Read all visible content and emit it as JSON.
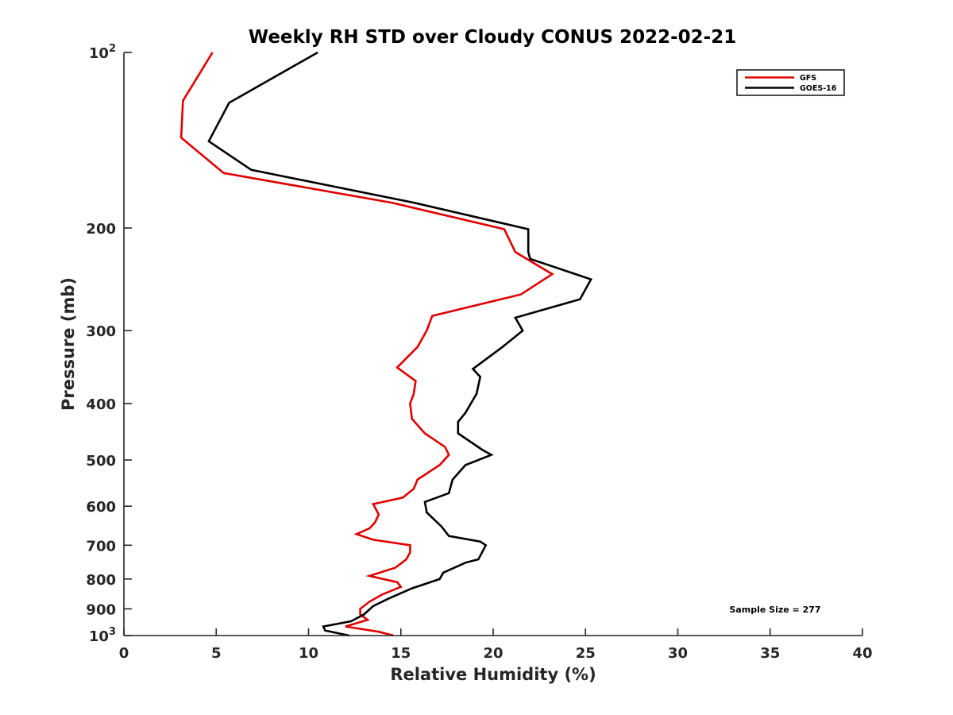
{
  "chart_data": {
    "type": "line",
    "title": "Weekly RH STD over Cloudy CONUS 2022-02-21",
    "xlabel": "Relative Humidity (%)",
    "ylabel": "Pressure (mb)",
    "xlim": [
      0,
      40
    ],
    "ylim": [
      100,
      1000
    ],
    "yscale": "log",
    "y_reversed": true,
    "x_ticks": [
      0,
      5,
      10,
      15,
      20,
      25,
      30,
      35,
      40
    ],
    "x_tick_labels": [
      "0",
      "5",
      "10",
      "15",
      "20",
      "25",
      "30",
      "35",
      "40"
    ],
    "y_ticks": [
      100,
      200,
      300,
      400,
      500,
      600,
      700,
      800,
      900,
      1000
    ],
    "y_tick_labels": [
      {
        "base": "10",
        "exp": "2"
      },
      {
        "text": "200"
      },
      {
        "text": "300"
      },
      {
        "text": "400"
      },
      {
        "text": "500"
      },
      {
        "text": "600"
      },
      {
        "text": "700"
      },
      {
        "text": "800"
      },
      {
        "text": "900"
      },
      {
        "base": "10",
        "exp": "3"
      }
    ],
    "legend_position": "top-right",
    "annotation": "Sample Size = 277",
    "series": [
      {
        "name": "GFS",
        "color": "#e00000",
        "points": [
          [
            4.8,
            100
          ],
          [
            3.2,
            121
          ],
          [
            3.1,
            140
          ],
          [
            5.4,
            161
          ],
          [
            14.5,
            181
          ],
          [
            20.6,
            201
          ],
          [
            21.2,
            220
          ],
          [
            23.2,
            240
          ],
          [
            21.5,
            260
          ],
          [
            16.7,
            283
          ],
          [
            16.4,
            300
          ],
          [
            15.9,
            320
          ],
          [
            14.8,
            347
          ],
          [
            15.8,
            366
          ],
          [
            15.7,
            385
          ],
          [
            15.5,
            400
          ],
          [
            15.6,
            425
          ],
          [
            16.3,
            450
          ],
          [
            17.4,
            475
          ],
          [
            17.6,
            490
          ],
          [
            17.1,
            510
          ],
          [
            15.9,
            540
          ],
          [
            15.7,
            560
          ],
          [
            15.1,
            580
          ],
          [
            13.5,
            595
          ],
          [
            13.8,
            620
          ],
          [
            13.6,
            640
          ],
          [
            13.3,
            655
          ],
          [
            12.6,
            670
          ],
          [
            13.5,
            685
          ],
          [
            15.5,
            700
          ],
          [
            15.5,
            720
          ],
          [
            15.3,
            740
          ],
          [
            14.7,
            765
          ],
          [
            13.3,
            790
          ],
          [
            14.8,
            810
          ],
          [
            15.0,
            825
          ],
          [
            14.0,
            850
          ],
          [
            13.3,
            875
          ],
          [
            12.8,
            900
          ],
          [
            12.8,
            920
          ],
          [
            13.2,
            940
          ],
          [
            12.0,
            965
          ],
          [
            13.8,
            985
          ],
          [
            14.6,
            1000
          ]
        ]
      },
      {
        "name": "GOES-16",
        "color": "#000000",
        "points": [
          [
            10.5,
            100
          ],
          [
            5.7,
            122
          ],
          [
            4.6,
            142
          ],
          [
            6.9,
            159
          ],
          [
            15.7,
            181
          ],
          [
            21.9,
            201
          ],
          [
            21.9,
            220
          ],
          [
            22.0,
            226
          ],
          [
            25.3,
            245
          ],
          [
            24.7,
            265
          ],
          [
            21.2,
            285
          ],
          [
            21.6,
            300
          ],
          [
            20.5,
            320
          ],
          [
            18.9,
            349
          ],
          [
            19.3,
            360
          ],
          [
            19.1,
            385
          ],
          [
            18.5,
            415
          ],
          [
            18.1,
            430
          ],
          [
            18.1,
            450
          ],
          [
            19.4,
            480
          ],
          [
            19.9,
            490
          ],
          [
            18.5,
            510
          ],
          [
            17.8,
            540
          ],
          [
            17.6,
            570
          ],
          [
            16.3,
            590
          ],
          [
            16.4,
            615
          ],
          [
            17.2,
            650
          ],
          [
            17.6,
            675
          ],
          [
            19.3,
            690
          ],
          [
            19.6,
            700
          ],
          [
            19.4,
            720
          ],
          [
            19.2,
            740
          ],
          [
            18.5,
            750
          ],
          [
            17.3,
            780
          ],
          [
            17.1,
            800
          ],
          [
            15.6,
            830
          ],
          [
            14.3,
            865
          ],
          [
            13.5,
            890
          ],
          [
            13.0,
            920
          ],
          [
            12.3,
            945
          ],
          [
            10.8,
            965
          ],
          [
            10.9,
            980
          ],
          [
            12.2,
            1000
          ]
        ]
      }
    ]
  }
}
